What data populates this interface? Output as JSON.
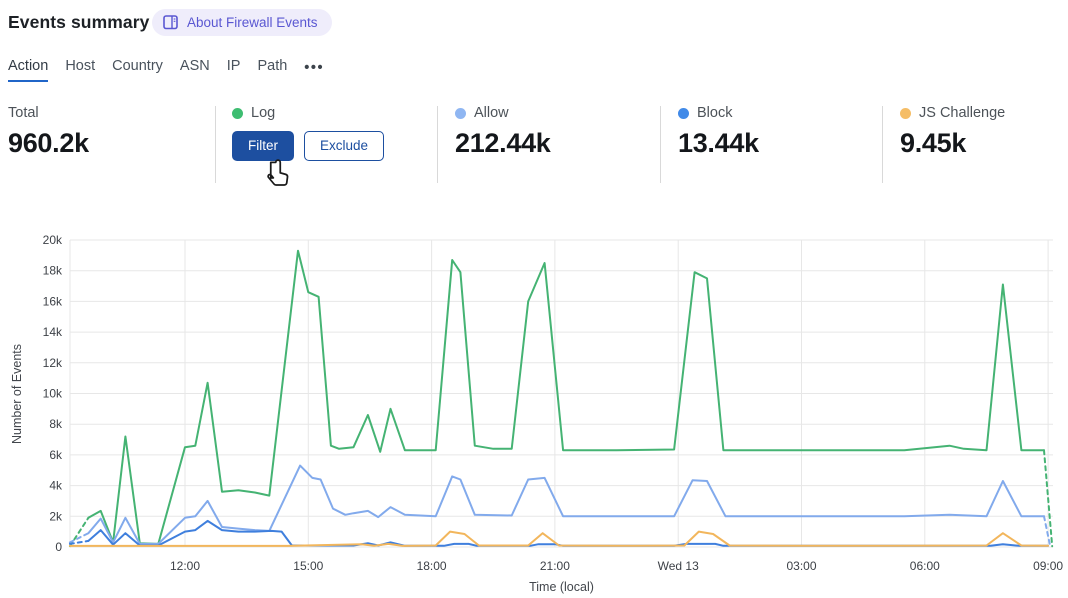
{
  "header": {
    "title": "Events summary",
    "badge": {
      "icon": "book-open-icon",
      "label": "About Firewall Events"
    }
  },
  "tabs": {
    "items": [
      {
        "label": "Action",
        "active": true
      },
      {
        "label": "Host",
        "active": false
      },
      {
        "label": "Country",
        "active": false
      },
      {
        "label": "ASN",
        "active": false
      },
      {
        "label": "IP",
        "active": false
      },
      {
        "label": "Path",
        "active": false
      }
    ],
    "more_label": "•••"
  },
  "stats": [
    {
      "id": "total",
      "label": "Total",
      "value": "960.2k"
    },
    {
      "id": "log",
      "label": "Log",
      "dot_color": "#3ebd71",
      "buttons": [
        {
          "id": "filter",
          "label": "Filter",
          "style": "primary"
        },
        {
          "id": "exclude",
          "label": "Exclude",
          "style": "secondary"
        }
      ]
    },
    {
      "id": "allow",
      "label": "Allow",
      "dot_color": "#8fb6f2",
      "value": "212.44k"
    },
    {
      "id": "block",
      "label": "Block",
      "dot_color": "#418ae8",
      "value": "13.44k"
    },
    {
      "id": "js-challenge",
      "label": "JS Challenge",
      "dot_color": "#f5bd66",
      "value": "9.45k"
    }
  ],
  "chart_data": {
    "type": "line",
    "title": "",
    "xlabel": "Time (local)",
    "ylabel": "Number of Events",
    "grid": true,
    "legend_position": "none",
    "ylim_events": [
      0,
      20000
    ],
    "y_ticks": [
      {
        "v": 0,
        "label": "0"
      },
      {
        "v": 2,
        "label": "2k"
      },
      {
        "v": 4,
        "label": "4k"
      },
      {
        "v": 6,
        "label": "6k"
      },
      {
        "v": 8,
        "label": "8k"
      },
      {
        "v": 10,
        "label": "10k"
      },
      {
        "v": 12,
        "label": "12k"
      },
      {
        "v": 14,
        "label": "14k"
      },
      {
        "v": 16,
        "label": "16k"
      },
      {
        "v": 18,
        "label": "18k"
      },
      {
        "v": 20,
        "label": "20k"
      }
    ],
    "x_ticks": [
      {
        "t": 12,
        "label": "12:00"
      },
      {
        "t": 15,
        "label": "15:00"
      },
      {
        "t": 18,
        "label": "18:00"
      },
      {
        "t": 21,
        "label": "21:00"
      },
      {
        "t": 24,
        "label": "Wed 13"
      },
      {
        "t": 27,
        "label": "03:00"
      },
      {
        "t": 30,
        "label": "06:00"
      },
      {
        "t": 33,
        "label": "09:00"
      }
    ],
    "units_note": "t = local time in hours (24+ means after midnight Wed 13); v = events in thousands; dashed head/tail segments are partial buckets",
    "series": [
      {
        "name": "Log",
        "color": "#45b373",
        "dash_head": 1,
        "dash_tail": 1,
        "points": [
          [
            9.2,
            0.05
          ],
          [
            9.65,
            1.9
          ],
          [
            9.95,
            2.35
          ],
          [
            10.25,
            0.3
          ],
          [
            10.55,
            7.2
          ],
          [
            10.9,
            0.25
          ],
          [
            11.35,
            0.2
          ],
          [
            12.0,
            6.5
          ],
          [
            12.25,
            6.6
          ],
          [
            12.55,
            10.7
          ],
          [
            12.9,
            3.6
          ],
          [
            13.3,
            3.7
          ],
          [
            13.7,
            3.55
          ],
          [
            14.05,
            3.35
          ],
          [
            14.75,
            19.3
          ],
          [
            15.0,
            16.6
          ],
          [
            15.25,
            16.3
          ],
          [
            15.55,
            6.6
          ],
          [
            15.75,
            6.4
          ],
          [
            16.1,
            6.5
          ],
          [
            16.45,
            8.6
          ],
          [
            16.75,
            6.2
          ],
          [
            17.0,
            9.0
          ],
          [
            17.35,
            6.3
          ],
          [
            18.1,
            6.3
          ],
          [
            18.5,
            18.7
          ],
          [
            18.7,
            17.9
          ],
          [
            19.05,
            6.6
          ],
          [
            19.5,
            6.4
          ],
          [
            19.95,
            6.4
          ],
          [
            20.35,
            16.0
          ],
          [
            20.75,
            18.5
          ],
          [
            21.2,
            6.3
          ],
          [
            22.5,
            6.3
          ],
          [
            23.9,
            6.35
          ],
          [
            24.4,
            17.9
          ],
          [
            24.7,
            17.5
          ],
          [
            25.1,
            6.3
          ],
          [
            26.5,
            6.3
          ],
          [
            28.0,
            6.3
          ],
          [
            29.5,
            6.3
          ],
          [
            30.6,
            6.6
          ],
          [
            30.95,
            6.4
          ],
          [
            31.5,
            6.3
          ],
          [
            31.9,
            17.1
          ],
          [
            32.35,
            6.3
          ],
          [
            32.9,
            6.3
          ],
          [
            33.1,
            0.05
          ]
        ]
      },
      {
        "name": "Allow",
        "color": "#82aaec",
        "dash_head": 1,
        "dash_tail": 1,
        "points": [
          [
            9.2,
            0.3
          ],
          [
            9.65,
            0.9
          ],
          [
            9.95,
            1.85
          ],
          [
            10.25,
            0.3
          ],
          [
            10.55,
            1.9
          ],
          [
            10.9,
            0.2
          ],
          [
            11.35,
            0.2
          ],
          [
            12.0,
            1.9
          ],
          [
            12.25,
            2.0
          ],
          [
            12.55,
            3.0
          ],
          [
            12.9,
            1.3
          ],
          [
            13.3,
            1.2
          ],
          [
            13.7,
            1.1
          ],
          [
            14.05,
            1.05
          ],
          [
            14.8,
            5.3
          ],
          [
            15.1,
            4.5
          ],
          [
            15.3,
            4.4
          ],
          [
            15.6,
            2.5
          ],
          [
            15.9,
            2.1
          ],
          [
            16.1,
            2.2
          ],
          [
            16.45,
            2.35
          ],
          [
            16.7,
            1.95
          ],
          [
            17.0,
            2.6
          ],
          [
            17.35,
            2.1
          ],
          [
            18.1,
            2.0
          ],
          [
            18.5,
            4.6
          ],
          [
            18.7,
            4.4
          ],
          [
            19.05,
            2.1
          ],
          [
            19.95,
            2.05
          ],
          [
            20.35,
            4.4
          ],
          [
            20.75,
            4.5
          ],
          [
            21.2,
            2.0
          ],
          [
            22.5,
            2.0
          ],
          [
            23.9,
            2.0
          ],
          [
            24.35,
            4.35
          ],
          [
            24.7,
            4.3
          ],
          [
            25.15,
            2.0
          ],
          [
            26.5,
            2.0
          ],
          [
            28.0,
            2.0
          ],
          [
            29.5,
            2.0
          ],
          [
            30.6,
            2.1
          ],
          [
            31.5,
            2.0
          ],
          [
            31.9,
            4.3
          ],
          [
            32.35,
            2.0
          ],
          [
            32.9,
            2.0
          ],
          [
            33.05,
            0.05
          ]
        ]
      },
      {
        "name": "Block",
        "color": "#3f7fdd",
        "dash_head": 1,
        "dash_tail": 0,
        "points": [
          [
            9.2,
            0.2
          ],
          [
            9.65,
            0.4
          ],
          [
            9.95,
            1.1
          ],
          [
            10.25,
            0.15
          ],
          [
            10.55,
            0.9
          ],
          [
            10.9,
            0.1
          ],
          [
            11.35,
            0.1
          ],
          [
            12.0,
            1.0
          ],
          [
            12.25,
            1.1
          ],
          [
            12.55,
            1.7
          ],
          [
            12.9,
            1.1
          ],
          [
            13.3,
            1.0
          ],
          [
            13.7,
            1.0
          ],
          [
            14.1,
            1.05
          ],
          [
            14.35,
            1.0
          ],
          [
            14.6,
            0.1
          ],
          [
            16.1,
            0.1
          ],
          [
            16.45,
            0.25
          ],
          [
            16.7,
            0.1
          ],
          [
            17.0,
            0.3
          ],
          [
            17.35,
            0.08
          ],
          [
            18.3,
            0.08
          ],
          [
            18.55,
            0.2
          ],
          [
            18.9,
            0.2
          ],
          [
            19.1,
            0.08
          ],
          [
            20.4,
            0.08
          ],
          [
            20.6,
            0.18
          ],
          [
            21.0,
            0.18
          ],
          [
            21.2,
            0.08
          ],
          [
            23.9,
            0.08
          ],
          [
            24.2,
            0.2
          ],
          [
            24.9,
            0.2
          ],
          [
            25.1,
            0.08
          ],
          [
            28.0,
            0.08
          ],
          [
            31.6,
            0.08
          ],
          [
            31.9,
            0.18
          ],
          [
            32.3,
            0.08
          ],
          [
            33.0,
            0.08
          ]
        ]
      },
      {
        "name": "JS Challenge",
        "color": "#f2b65c",
        "dash_head": 0,
        "dash_tail": 0,
        "points": [
          [
            9.2,
            0.07
          ],
          [
            11.0,
            0.07
          ],
          [
            13.0,
            0.07
          ],
          [
            14.5,
            0.07
          ],
          [
            16.3,
            0.18
          ],
          [
            16.6,
            0.08
          ],
          [
            16.95,
            0.2
          ],
          [
            17.3,
            0.07
          ],
          [
            18.1,
            0.1
          ],
          [
            18.45,
            1.0
          ],
          [
            18.8,
            0.85
          ],
          [
            19.15,
            0.1
          ],
          [
            20.35,
            0.1
          ],
          [
            20.7,
            0.9
          ],
          [
            21.1,
            0.1
          ],
          [
            22.5,
            0.08
          ],
          [
            24.15,
            0.1
          ],
          [
            24.5,
            1.0
          ],
          [
            24.85,
            0.85
          ],
          [
            25.25,
            0.1
          ],
          [
            27.0,
            0.08
          ],
          [
            29.0,
            0.08
          ],
          [
            31.5,
            0.1
          ],
          [
            31.9,
            0.9
          ],
          [
            32.35,
            0.1
          ],
          [
            33.0,
            0.08
          ]
        ]
      }
    ]
  }
}
